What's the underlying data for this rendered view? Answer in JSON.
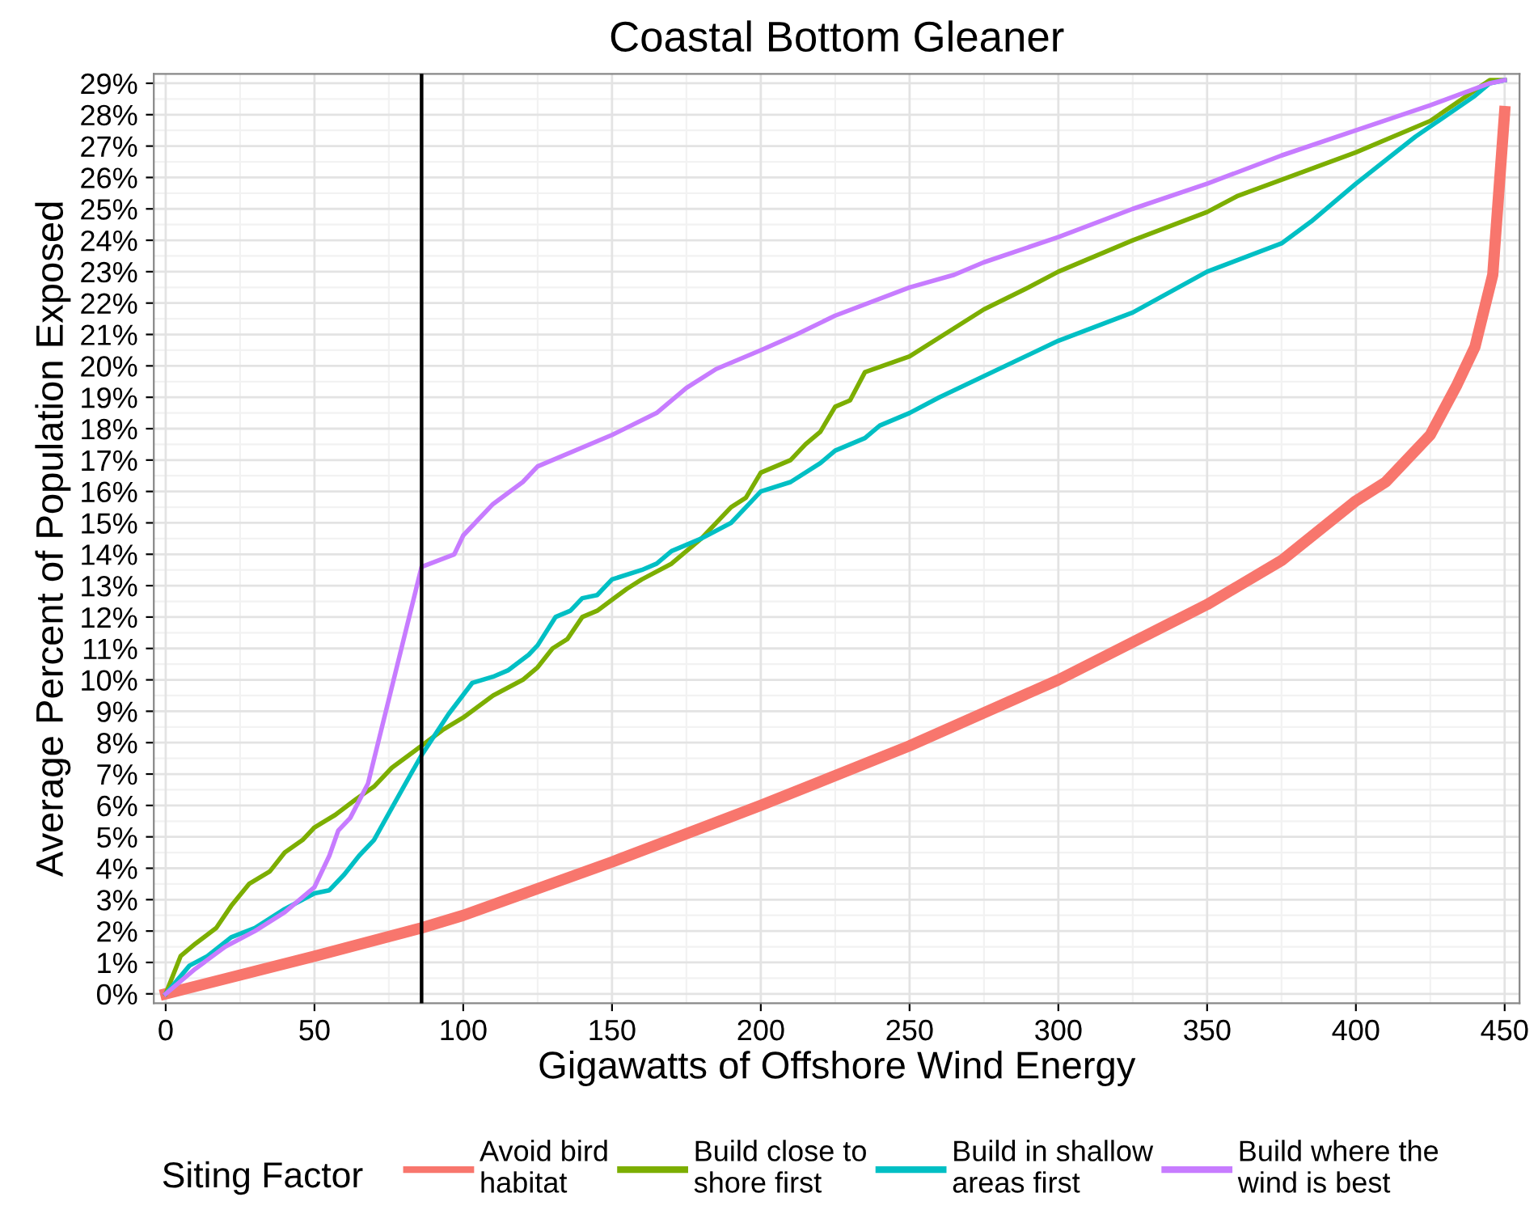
{
  "chart_data": {
    "type": "line",
    "title": "Coastal Bottom Gleaner",
    "xlabel": "Gigawatts of Offshore Wind Energy",
    "ylabel": "Average Percent of Population Exposed",
    "legend_title": "Siting Factor",
    "legend": "bottom",
    "grid": true,
    "xlim": [
      -4,
      455
    ],
    "xticks": [
      0,
      50,
      100,
      150,
      200,
      250,
      300,
      350,
      400,
      450
    ],
    "ylim": [
      -0.3,
      29.3
    ],
    "yticks": [
      {
        "value": 0,
        "label": "0%"
      },
      {
        "value": 1,
        "label": "1%"
      },
      {
        "value": 2,
        "label": "2%"
      },
      {
        "value": 3,
        "label": "3%"
      },
      {
        "value": 4,
        "label": "4%"
      },
      {
        "value": 5,
        "label": "5%"
      },
      {
        "value": 6,
        "label": "6%"
      },
      {
        "value": 7,
        "label": "7%"
      },
      {
        "value": 8,
        "label": "8%"
      },
      {
        "value": 9,
        "label": "9%"
      },
      {
        "value": 10,
        "label": "10%"
      },
      {
        "value": 11,
        "label": "11%"
      },
      {
        "value": 12,
        "label": "12%"
      },
      {
        "value": 13,
        "label": "13%"
      },
      {
        "value": 14,
        "label": "14%"
      },
      {
        "value": 15,
        "label": "15%"
      },
      {
        "value": 16,
        "label": "16%"
      },
      {
        "value": 17,
        "label": "17%"
      },
      {
        "value": 18,
        "label": "18%"
      },
      {
        "value": 19,
        "label": "19%"
      },
      {
        "value": 20,
        "label": "20%"
      },
      {
        "value": 21,
        "label": "21%"
      },
      {
        "value": 22,
        "label": "22%"
      },
      {
        "value": 23,
        "label": "23%"
      },
      {
        "value": 24,
        "label": "24%"
      },
      {
        "value": 25,
        "label": "25%"
      },
      {
        "value": 26,
        "label": "26%"
      },
      {
        "value": 27,
        "label": "27%"
      },
      {
        "value": 28,
        "label": "28%"
      },
      {
        "value": 29,
        "label": "29%"
      }
    ],
    "ref_lines": [
      {
        "axis": "x",
        "value": 86,
        "color": "#000000"
      }
    ],
    "series": [
      {
        "name": "Avoid bird\nhabitat",
        "color": "#f8766d",
        "x": [
          0,
          50,
          86,
          100,
          150,
          200,
          250,
          300,
          350,
          375,
          400,
          410,
          425,
          434,
          440,
          446,
          450
        ],
        "values": [
          0,
          1.2,
          2.1,
          2.5,
          4.2,
          6.0,
          7.9,
          10.0,
          12.4,
          13.8,
          15.7,
          16.3,
          17.8,
          19.4,
          20.6,
          22.9,
          28.1
        ]
      },
      {
        "name": "Build close to\nshore first",
        "color": "#7cae00",
        "x": [
          0,
          5,
          10,
          17,
          22,
          28,
          35,
          40,
          46,
          50,
          57,
          64,
          70,
          76,
          86,
          93,
          100,
          110,
          120,
          125,
          130,
          135,
          140,
          145,
          155,
          160,
          170,
          180,
          190,
          195,
          200,
          210,
          215,
          220,
          225,
          230,
          235,
          250,
          265,
          275,
          290,
          300,
          325,
          350,
          360,
          400,
          425,
          445,
          450
        ],
        "values": [
          0,
          1.2,
          1.6,
          2.1,
          2.8,
          3.5,
          3.9,
          4.5,
          4.9,
          5.3,
          5.7,
          6.2,
          6.6,
          7.2,
          7.9,
          8.4,
          8.8,
          9.5,
          10.0,
          10.4,
          11.0,
          11.3,
          12.0,
          12.2,
          12.9,
          13.2,
          13.7,
          14.5,
          15.5,
          15.8,
          16.6,
          17.0,
          17.5,
          17.9,
          18.7,
          18.9,
          19.8,
          20.3,
          21.2,
          21.8,
          22.5,
          23.0,
          24.0,
          24.9,
          25.4,
          26.8,
          27.8,
          29.1,
          29.1
        ]
      },
      {
        "name": "Build in shallow\nareas first",
        "color": "#00bfc4",
        "x": [
          0,
          8,
          14,
          22,
          30,
          40,
          50,
          55,
          60,
          65,
          70,
          80,
          86,
          95,
          103,
          110,
          115,
          122,
          125,
          131,
          136,
          140,
          145,
          150,
          160,
          165,
          170,
          180,
          190,
          195,
          200,
          210,
          220,
          225,
          235,
          240,
          250,
          260,
          300,
          325,
          350,
          375,
          385,
          400,
          420,
          440,
          445,
          450
        ],
        "values": [
          0,
          0.9,
          1.2,
          1.8,
          2.1,
          2.7,
          3.2,
          3.3,
          3.8,
          4.4,
          4.9,
          6.6,
          7.6,
          8.9,
          9.9,
          10.1,
          10.3,
          10.8,
          11.1,
          12.0,
          12.2,
          12.6,
          12.7,
          13.2,
          13.5,
          13.7,
          14.1,
          14.5,
          15.0,
          15.5,
          16.0,
          16.3,
          16.9,
          17.3,
          17.7,
          18.1,
          18.5,
          19.0,
          20.8,
          21.7,
          23.0,
          23.9,
          24.6,
          25.8,
          27.3,
          28.6,
          29.0,
          29.1
        ]
      },
      {
        "name": "Build where the\nwind is best",
        "color": "#c77cff",
        "x": [
          0,
          10,
          20,
          30,
          40,
          50,
          55,
          58,
          62,
          68,
          86,
          97,
          100,
          110,
          120,
          125,
          150,
          165,
          175,
          185,
          200,
          212,
          225,
          250,
          265,
          275,
          300,
          325,
          350,
          375,
          400,
          425,
          445,
          450
        ],
        "values": [
          0,
          0.8,
          1.5,
          2.0,
          2.6,
          3.4,
          4.4,
          5.2,
          5.6,
          6.7,
          13.6,
          14.0,
          14.6,
          15.6,
          16.3,
          16.8,
          17.8,
          18.5,
          19.3,
          19.9,
          20.5,
          21.0,
          21.6,
          22.5,
          22.9,
          23.3,
          24.1,
          25.0,
          25.8,
          26.7,
          27.5,
          28.3,
          29.0,
          29.1
        ]
      }
    ]
  }
}
